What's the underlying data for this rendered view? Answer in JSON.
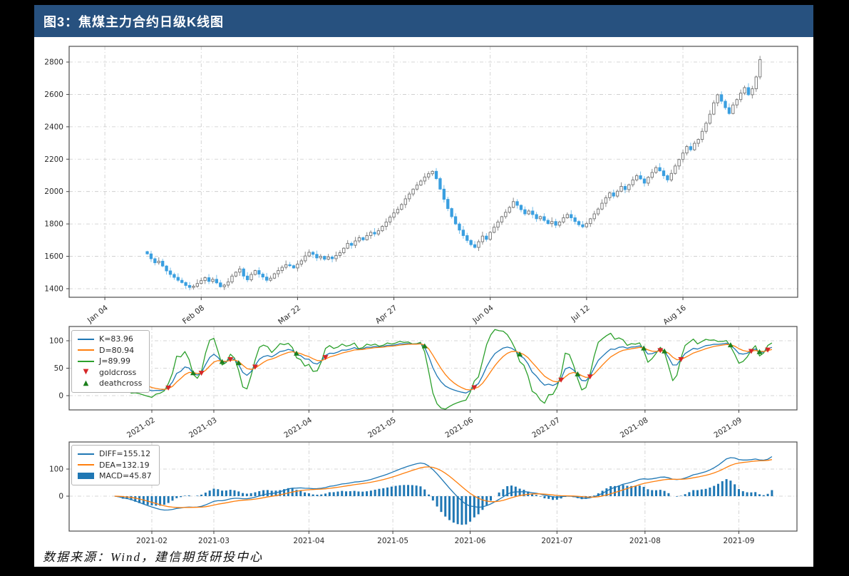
{
  "page": {
    "title": "图3：焦煤主力合约日级K线图",
    "source_note": "数据来源：Wind，建信期货研投中心",
    "colors": {
      "page_bg": "#000000",
      "header_bg": "#27517f",
      "header_text": "#ffffff",
      "content_bg": "#ffffff",
      "up_candle_fill": "#ffffff",
      "up_candle_border": "#707070",
      "up_wick": "#8c8c8c",
      "down_candle": "#3a9fe0",
      "down_wick": "#79bfe9",
      "k_line": "#1f77b4",
      "d_line": "#ff7f0e",
      "j_line": "#2ca02c",
      "goldcross": "#d62728",
      "deathcross": "#1c7f1c",
      "diff_line": "#1f77b4",
      "dea_line": "#ff7f0e",
      "macd_bar": "#1f77b4",
      "grid": "#c9c9c9",
      "spine": "#4d4d4d",
      "tick_text": "#2b2b2b"
    }
  },
  "chart_data": [
    {
      "type": "candlestick",
      "name": "coking-coal-main-contract-daily",
      "ylim": [
        1347,
        2897
      ],
      "yticks": [
        1400,
        1600,
        1800,
        2000,
        2200,
        2400,
        2600,
        2800
      ],
      "xticks": [
        {
          "day": 0,
          "label": "Jan 04"
        },
        {
          "day": 25,
          "label": "Feb 08"
        },
        {
          "day": 50,
          "label": "Mar 22"
        },
        {
          "day": 75,
          "label": "Apr 27"
        },
        {
          "day": 100,
          "label": "Jun 04"
        },
        {
          "day": 125,
          "label": "Jul 12"
        },
        {
          "day": 150,
          "label": "Aug 16"
        }
      ],
      "start_day": 11,
      "closes": [
        1615,
        1585,
        1560,
        1570,
        1540,
        1510,
        1488,
        1470,
        1452,
        1438,
        1420,
        1408,
        1415,
        1432,
        1450,
        1468,
        1445,
        1458,
        1436,
        1412,
        1422,
        1442,
        1478,
        1502,
        1522,
        1478,
        1455,
        1488,
        1512,
        1490,
        1472,
        1452,
        1465,
        1492,
        1512,
        1532,
        1548,
        1542,
        1528,
        1552,
        1572,
        1602,
        1625,
        1612,
        1590,
        1600,
        1582,
        1596,
        1585,
        1605,
        1622,
        1650,
        1680,
        1668,
        1695,
        1715,
        1702,
        1728,
        1748,
        1738,
        1758,
        1785,
        1812,
        1842,
        1868,
        1890,
        1920,
        1955,
        1985,
        2015,
        2040,
        2065,
        2090,
        2110,
        2125,
        2080,
        2015,
        1952,
        1895,
        1845,
        1800,
        1762,
        1728,
        1698,
        1672,
        1655,
        1690,
        1725,
        1705,
        1748,
        1780,
        1812,
        1845,
        1872,
        1902,
        1938,
        1915,
        1888,
        1862,
        1880,
        1858,
        1832,
        1845,
        1822,
        1802,
        1815,
        1792,
        1812,
        1838,
        1858,
        1838,
        1815,
        1795,
        1782,
        1802,
        1832,
        1862,
        1892,
        1928,
        1962,
        1992,
        1972,
        2002,
        2032,
        2012,
        2042,
        2072,
        2098,
        2078,
        2052,
        2088,
        2118,
        2148,
        2128,
        2098,
        2072,
        2112,
        2158,
        2198,
        2238,
        2278,
        2258,
        2298,
        2322,
        2372,
        2422,
        2478,
        2548,
        2598,
        2558,
        2518,
        2482,
        2535,
        2568,
        2608,
        2642,
        2598,
        2635,
        2708,
        2815
      ]
    },
    {
      "type": "line",
      "name": "KDJ",
      "ylim": [
        -26,
        126
      ],
      "yticks": [
        0,
        50,
        100
      ],
      "xticks": [
        {
          "day": 20,
          "label": "2021-02"
        },
        {
          "day": 35,
          "label": "2021-03"
        },
        {
          "day": 58,
          "label": "2021-04"
        },
        {
          "day": 78.3,
          "label": "2021-05"
        },
        {
          "day": 97,
          "label": "2021-06"
        },
        {
          "day": 118,
          "label": "2021-07"
        },
        {
          "day": 139.3,
          "label": "2021-08"
        },
        {
          "day": 162,
          "label": "2021-09"
        }
      ],
      "legend": [
        {
          "label": "K=83.96",
          "series": "K"
        },
        {
          "label": "D=80.94",
          "series": "D"
        },
        {
          "label": "J=89.99",
          "series": "J"
        },
        {
          "label": "goldcross",
          "series": "goldcross"
        },
        {
          "label": "deathcross",
          "series": "deathcross"
        }
      ]
    },
    {
      "type": "line+bar",
      "name": "MACD",
      "ylim": [
        -129,
        200
      ],
      "yticks": [
        0,
        100
      ],
      "xticks": [
        {
          "day": 20,
          "label": "2021-02"
        },
        {
          "day": 35,
          "label": "2021-03"
        },
        {
          "day": 58,
          "label": "2021-04"
        },
        {
          "day": 78.3,
          "label": "2021-05"
        },
        {
          "day": 97,
          "label": "2021-06"
        },
        {
          "day": 118,
          "label": "2021-07"
        },
        {
          "day": 139.3,
          "label": "2021-08"
        },
        {
          "day": 162,
          "label": "2021-09"
        }
      ],
      "legend": [
        {
          "label": "DIFF=155.12",
          "series": "DIFF"
        },
        {
          "label": "DEA=132.19",
          "series": "DEA"
        },
        {
          "label": "MACD=45.87",
          "series": "MACD"
        }
      ]
    }
  ]
}
